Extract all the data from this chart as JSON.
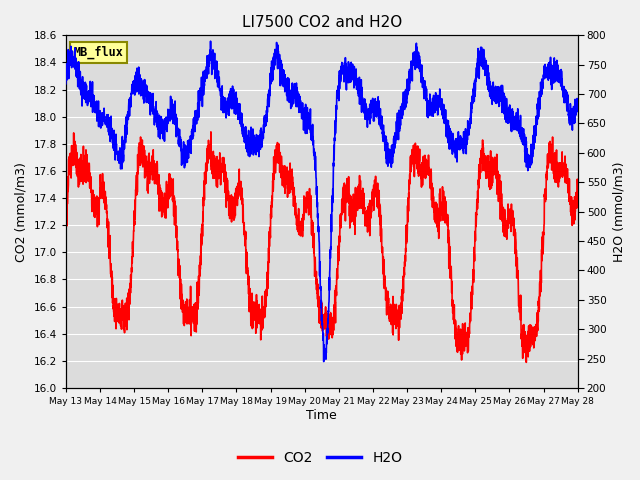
{
  "title": "LI7500 CO2 and H2O",
  "xlabel": "Time",
  "ylabel_left": "CO2 (mmol/m3)",
  "ylabel_right": "H2O (mmol/m3)",
  "co2_ylim": [
    16.0,
    18.6
  ],
  "h2o_ylim": [
    200,
    800
  ],
  "co2_yticks": [
    16.0,
    16.2,
    16.4,
    16.6,
    16.8,
    17.0,
    17.2,
    17.4,
    17.6,
    17.8,
    18.0,
    18.2,
    18.4,
    18.6
  ],
  "h2o_yticks": [
    200,
    250,
    300,
    350,
    400,
    450,
    500,
    550,
    600,
    650,
    700,
    750,
    800
  ],
  "xtick_labels": [
    "May 13",
    "May 14",
    "May 15",
    "May 16",
    "May 17",
    "May 18",
    "May 19",
    "May 20",
    "May 21",
    "May 22",
    "May 23",
    "May 24",
    "May 25",
    "May 26",
    "May 27",
    "May 28"
  ],
  "co2_color": "#FF0000",
  "h2o_color": "#0000FF",
  "fig_bg_color": "#F0F0F0",
  "plot_bg_color": "#DCDCDC",
  "grid_color": "#FFFFFF",
  "annotation_text": "MB_flux",
  "annotation_bg": "#FFFF99",
  "annotation_border": "#888800",
  "legend_co2": "CO2",
  "legend_h2o": "H2O",
  "line_width": 1.2,
  "n_points": 3000
}
